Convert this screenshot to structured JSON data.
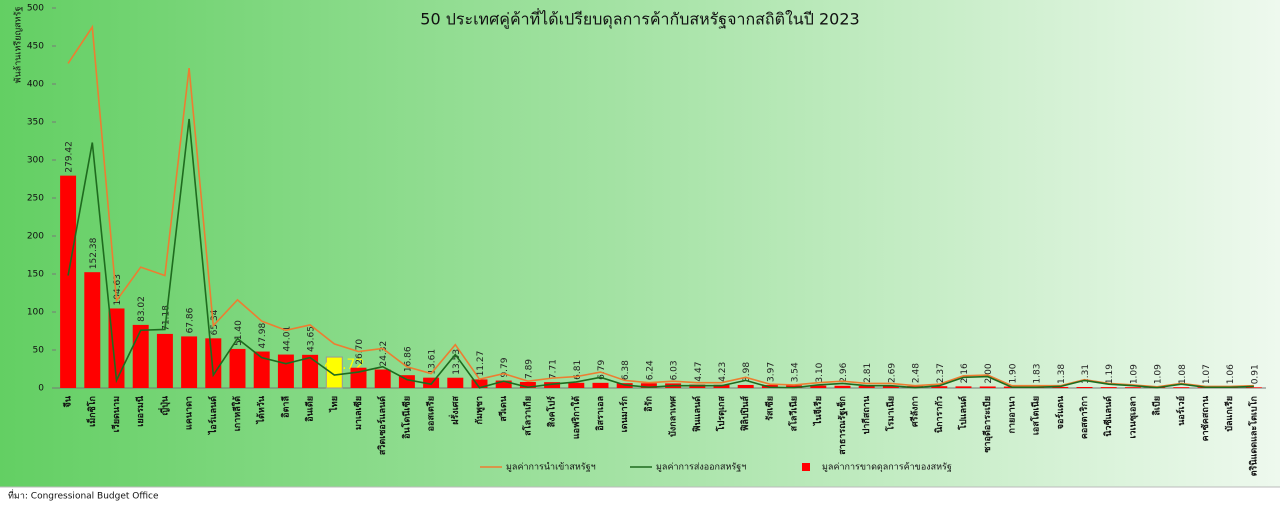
{
  "chart_data": {
    "type": "bar",
    "title": "50 ประเทศคู่ค้าที่ได้เปรียบดุลการค้ากับสหรัฐจากสถิติในปี 2023",
    "y_label": "พันล้านเหรียญสหรัฐ",
    "source": "ที่มา: Congressional Budget Office",
    "categories": [
      "จีน",
      "เม็กซิโก",
      "เวียดนาม",
      "เยอรมนี",
      "ญี่ปุ่น",
      "แคนาดา",
      "ไอร์แลนด์",
      "เกาหลีใต้",
      "ไต้หวัน",
      "อิตาลี",
      "อินเดีย",
      "ไทย",
      "มาเลเซีย",
      "สวิตเซอร์แลนด์",
      "อินโดนีเซีย",
      "ออสเตรีย",
      "ฝรั่งเศส",
      "กัมพูชา",
      "สวีเดน",
      "สโลวาเกีย",
      "สิงคโปร์",
      "แอฟริกาใต้",
      "อิสราเอล",
      "เดนมาร์ก",
      "อิรัก",
      "บังกลาเทศ",
      "ฟินแลนด์",
      "โปรตุเกส",
      "ฟิลิปปินส์",
      "รัสเซีย",
      "สโลวีเนีย",
      "ไนจีเรีย",
      "สาธารณรัฐเช็ก",
      "ปากีสถาน",
      "โรมาเนีย",
      "ศรีลังกา",
      "นิการากัว",
      "โปแลนด์",
      "ซาอุดีอาระเบีย",
      "กายอานา",
      "เอสโตเนีย",
      "จอร์แดน",
      "คอสตาริกา",
      "นิวซีแลนด์",
      "เวเนซุเอลา",
      "ลิเบีย",
      "นอร์เวย์",
      "คาซัคสถาน",
      "บัลแกเรีย",
      "ตรินิแดดและโตเบโก"
    ],
    "series": [
      {
        "name": "มูลค่าการขาดดุลการค้าของสหรัฐ",
        "type": "bar",
        "color": "#ff0000",
        "values": [
          279.42,
          152.38,
          104.63,
          83.02,
          71.18,
          67.86,
          65.34,
          51.4,
          47.98,
          44.01,
          43.65,
          40.72,
          26.7,
          24.32,
          16.86,
          13.61,
          13.53,
          11.27,
          9.79,
          7.89,
          7.71,
          6.81,
          6.79,
          6.38,
          6.24,
          6.03,
          4.47,
          4.23,
          3.98,
          3.97,
          3.54,
          3.1,
          2.96,
          2.81,
          2.69,
          2.48,
          2.37,
          2.16,
          2,
          1.9,
          1.83,
          1.38,
          1.31,
          1.19,
          1.09,
          1.09,
          1.08,
          1.07,
          1.06,
          0.91
        ],
        "value_labels": [
          "279.42",
          "152.38",
          "104.63",
          "83.02",
          "71.18",
          "67.86",
          "65.34",
          "51.40",
          "47.98",
          "44.01",
          "43.65",
          "40.72",
          "26.70",
          "24.32",
          "16.86",
          "13.61",
          "13.53",
          "11.27",
          "9.79",
          "7.89",
          "7.71",
          "6.81",
          "6.79",
          "6.38",
          "6.24",
          "6.03",
          "4.47",
          "4.23",
          "3.98",
          "3.97",
          "3.54",
          "3.10",
          "2.96",
          "2.81",
          "2.69",
          "2.48",
          "2.37",
          "2.16",
          "2.00",
          "1.90",
          "1.83",
          "1.38",
          "1.31",
          "1.19",
          "1.09",
          "1.09",
          "1.08",
          "1.07",
          "1.06",
          "0.91"
        ]
      },
      {
        "name": "มูลค่าการนำเข้าสหรัฐฯ",
        "type": "line",
        "color": "#ed7d31",
        "values": [
          427,
          475,
          115,
          159,
          148,
          421,
          82,
          116,
          88,
          76,
          83,
          58,
          48,
          52,
          28,
          19,
          57,
          11.6,
          19,
          9,
          13,
          15,
          21,
          10,
          7,
          9,
          7,
          7,
          14,
          5,
          4,
          7,
          9,
          6,
          6,
          3,
          5,
          16,
          17,
          3,
          3,
          3,
          11,
          6,
          4,
          1.6,
          6,
          2,
          2,
          3
        ]
      },
      {
        "name": "มูลค่าการส่งออกสหรัฐฯ",
        "type": "line",
        "color": "#1e6b1e",
        "values": [
          148,
          323,
          10,
          76,
          77,
          354,
          17,
          65,
          40,
          32,
          40,
          17,
          21,
          28,
          11,
          5,
          44,
          0.3,
          9,
          1,
          5,
          8,
          14,
          4,
          1,
          3,
          3,
          3,
          10,
          1,
          0.5,
          4,
          6,
          3,
          3,
          0.4,
          3,
          14,
          15,
          1,
          1,
          2,
          10,
          5,
          3,
          0.5,
          5,
          1,
          1,
          2
        ]
      }
    ],
    "highlight": {
      "index": 11,
      "color": "#ffff00"
    },
    "ylim": [
      0,
      500
    ],
    "yticks": [
      0,
      50,
      100,
      150,
      200,
      250,
      300,
      350,
      400,
      450,
      500
    ]
  }
}
